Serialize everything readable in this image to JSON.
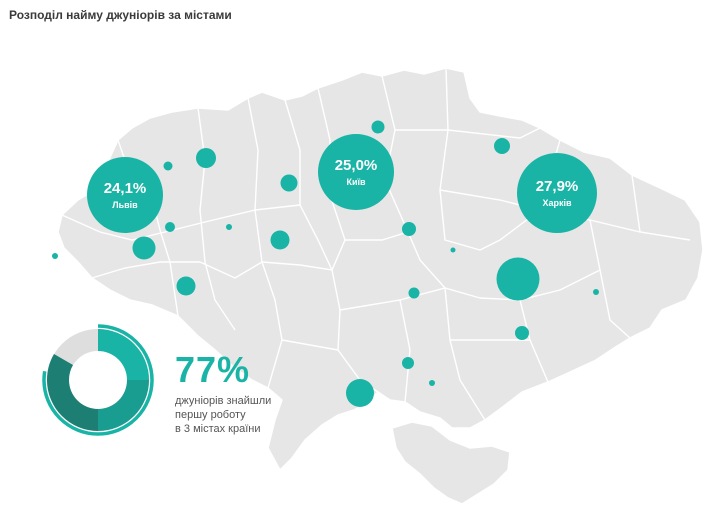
{
  "title": "Розподіл найму джуніорів за містами",
  "colors": {
    "accent": "#19b4a6",
    "map_fill": "#e6e6e6",
    "map_stroke": "#ffffff",
    "donut_dark": "#1d7f74",
    "donut_mid": "#1a9d91",
    "donut_grey": "#dedede"
  },
  "labeled_cities": [
    {
      "value": "24,1%",
      "name": "Львів"
    },
    {
      "value": "25,0%",
      "name": "Київ"
    },
    {
      "value": "27,9%",
      "name": "Харків"
    }
  ],
  "summary": {
    "value": "77%",
    "lines": [
      "джуніорів знайшли",
      "першу роботу",
      "в 3 містах країни"
    ]
  }
}
